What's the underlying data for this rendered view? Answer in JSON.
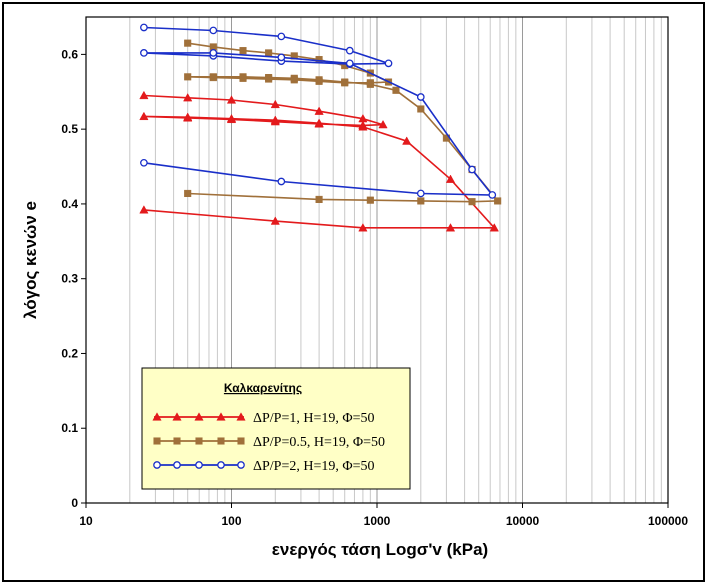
{
  "chart_data": {
    "type": "line",
    "xscale": "log",
    "xlim": [
      10,
      100000
    ],
    "ylim": [
      0,
      0.65
    ],
    "xticks": [
      "10",
      "100",
      "1000",
      "10000",
      "100000"
    ],
    "yticks": [
      "0",
      "0.1",
      "0.2",
      "0.3",
      "0.4",
      "0.5",
      "0.6"
    ],
    "xlabel": "ενεργός τάση Logσ'v (kPa)",
    "ylabel": "λόγος κενών e",
    "grid": true,
    "legend_position": "bottom-left",
    "legend_title": "Καλκαρενίτης",
    "series": [
      {
        "name": "ΔP/P=1, H=19, Φ=50",
        "color": "#e31a1c",
        "marker": "triangle",
        "points": [
          [
            25,
            0.545
          ],
          [
            50,
            0.542
          ],
          [
            100,
            0.539
          ],
          [
            200,
            0.533
          ],
          [
            400,
            0.524
          ],
          [
            800,
            0.514
          ],
          [
            1100,
            0.506
          ],
          [
            800,
            0.505
          ],
          [
            400,
            0.507
          ],
          [
            200,
            0.51
          ],
          [
            100,
            0.513
          ],
          [
            50,
            0.515
          ],
          [
            25,
            0.517
          ],
          [
            50,
            0.516
          ],
          [
            100,
            0.514
          ],
          [
            200,
            0.512
          ],
          [
            400,
            0.508
          ],
          [
            800,
            0.503
          ],
          [
            1600,
            0.484
          ],
          [
            3200,
            0.433
          ],
          [
            6400,
            0.368
          ],
          [
            3200,
            0.368
          ],
          [
            800,
            0.368
          ],
          [
            200,
            0.377
          ],
          [
            25,
            0.392
          ]
        ]
      },
      {
        "name": "ΔP/P=0.5, H=19, Φ=50",
        "color": "#a0703a",
        "marker": "square",
        "points": [
          [
            50,
            0.615
          ],
          [
            75,
            0.61
          ],
          [
            120,
            0.605
          ],
          [
            180,
            0.602
          ],
          [
            270,
            0.598
          ],
          [
            400,
            0.593
          ],
          [
            600,
            0.585
          ],
          [
            900,
            0.575
          ],
          [
            1200,
            0.563
          ],
          [
            900,
            0.562
          ],
          [
            600,
            0.562
          ],
          [
            400,
            0.564
          ],
          [
            270,
            0.566
          ],
          [
            180,
            0.567
          ],
          [
            120,
            0.568
          ],
          [
            75,
            0.569
          ],
          [
            50,
            0.57
          ],
          [
            75,
            0.57
          ],
          [
            120,
            0.57
          ],
          [
            180,
            0.569
          ],
          [
            270,
            0.568
          ],
          [
            400,
            0.566
          ],
          [
            600,
            0.563
          ],
          [
            900,
            0.56
          ],
          [
            1350,
            0.552
          ],
          [
            2000,
            0.527
          ],
          [
            3000,
            0.488
          ],
          [
            4500,
            0.446
          ],
          [
            6750,
            0.404
          ],
          [
            4500,
            0.403
          ],
          [
            2000,
            0.404
          ],
          [
            900,
            0.405
          ],
          [
            400,
            0.406
          ],
          [
            50,
            0.414
          ]
        ]
      },
      {
        "name": "ΔP/P=2, H=19, Φ=50",
        "color": "#1a2fc9",
        "marker": "circle",
        "points": [
          [
            25,
            0.636
          ],
          [
            75,
            0.632
          ],
          [
            220,
            0.624
          ],
          [
            650,
            0.605
          ],
          [
            1200,
            0.588
          ],
          [
            650,
            0.587
          ],
          [
            220,
            0.591
          ],
          [
            75,
            0.598
          ],
          [
            25,
            0.602
          ],
          [
            75,
            0.602
          ],
          [
            220,
            0.596
          ],
          [
            650,
            0.588
          ],
          [
            2000,
            0.543
          ],
          [
            4500,
            0.446
          ],
          [
            6200,
            0.412
          ],
          [
            2000,
            0.414
          ],
          [
            220,
            0.43
          ],
          [
            25,
            0.455
          ]
        ]
      }
    ]
  }
}
